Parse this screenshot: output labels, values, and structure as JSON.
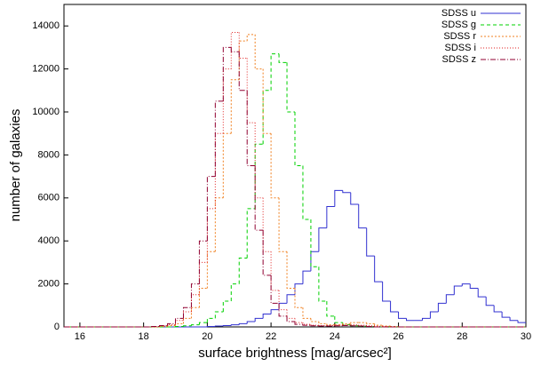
{
  "chart_data": {
    "type": "histogram",
    "xlabel": "surface brightness [mag/arcsec²]",
    "ylabel": "number of galaxies",
    "xlim": [
      15.5,
      30
    ],
    "xticks": [
      16,
      18,
      20,
      22,
      24,
      26,
      28,
      30
    ],
    "ylim": [
      0,
      15000
    ],
    "yticks": [
      0,
      2000,
      4000,
      6000,
      8000,
      10000,
      12000,
      14000
    ],
    "legend": "top-right",
    "bins": [
      15.5,
      15.75,
      16,
      16.25,
      16.5,
      16.75,
      17,
      17.25,
      17.5,
      17.75,
      18,
      18.25,
      18.5,
      18.75,
      19,
      19.25,
      19.5,
      19.75,
      20,
      20.25,
      20.5,
      20.75,
      21,
      21.25,
      21.5,
      21.75,
      22,
      22.25,
      22.5,
      22.75,
      23,
      23.25,
      23.5,
      23.75,
      24,
      24.25,
      24.5,
      24.75,
      25,
      25.25,
      25.5,
      25.75,
      26,
      26.25,
      26.5,
      26.75,
      27,
      27.25,
      27.5,
      27.75,
      28,
      28.25,
      28.5,
      28.75,
      29,
      29.25,
      29.5,
      29.75,
      30
    ],
    "series": [
      {
        "name": "SDSS u",
        "color": "#3030d0",
        "dash": "none",
        "values": [
          0,
          0,
          0,
          0,
          0,
          0,
          0,
          0,
          0,
          0,
          0,
          0,
          0,
          0,
          0,
          0,
          0,
          0,
          20,
          40,
          60,
          100,
          150,
          250,
          400,
          600,
          800,
          1100,
          1500,
          2000,
          2600,
          3500,
          4600,
          5600,
          6350,
          6250,
          5700,
          4600,
          3300,
          2100,
          1200,
          700,
          400,
          300,
          300,
          400,
          700,
          1100,
          1500,
          1900,
          2000,
          1800,
          1400,
          1000,
          700,
          450,
          300,
          200
        ]
      },
      {
        "name": "SDSS g",
        "color": "#00d000",
        "dash": "4,3",
        "values": [
          0,
          0,
          0,
          0,
          0,
          0,
          0,
          0,
          0,
          0,
          0,
          0,
          0,
          0,
          20,
          50,
          100,
          200,
          400,
          700,
          1200,
          2000,
          3200,
          5500,
          8500,
          11000,
          12700,
          12300,
          10000,
          7500,
          5000,
          2800,
          1200,
          500,
          200,
          100,
          50,
          30,
          20,
          0,
          0,
          0,
          0,
          0,
          0,
          0,
          0,
          0,
          0,
          0,
          0,
          0,
          0,
          0,
          0,
          0,
          0,
          0
        ]
      },
      {
        "name": "SDSS r",
        "color": "#f08020",
        "dash": "2,2",
        "values": [
          0,
          0,
          0,
          0,
          0,
          0,
          0,
          0,
          0,
          0,
          0,
          0,
          20,
          60,
          150,
          400,
          900,
          1800,
          3500,
          6000,
          9000,
          11500,
          13300,
          13600,
          12000,
          9000,
          6000,
          3500,
          1800,
          900,
          400,
          250,
          150,
          100,
          100,
          150,
          200,
          200,
          150,
          80,
          40,
          20,
          0,
          0,
          0,
          0,
          0,
          0,
          0,
          0,
          0,
          0,
          0,
          0,
          0,
          0,
          0,
          0
        ]
      },
      {
        "name": "SDSS i",
        "color": "#e02020",
        "dash": "1,2",
        "values": [
          0,
          0,
          0,
          0,
          0,
          0,
          0,
          0,
          0,
          0,
          0,
          0,
          40,
          100,
          300,
          700,
          1500,
          3000,
          5500,
          9000,
          12000,
          13700,
          12500,
          9500,
          6000,
          3500,
          1700,
          800,
          400,
          200,
          120,
          80,
          60,
          60,
          80,
          100,
          100,
          80,
          50,
          30,
          20,
          0,
          0,
          0,
          0,
          0,
          0,
          0,
          0,
          0,
          0,
          0,
          0,
          0,
          0,
          0,
          0,
          0
        ]
      },
      {
        "name": "SDSS z",
        "color": "#900030",
        "dash": "6,2,1,2",
        "values": [
          0,
          0,
          0,
          0,
          0,
          0,
          0,
          0,
          0,
          0,
          0,
          20,
          60,
          150,
          400,
          900,
          2000,
          4000,
          7000,
          10500,
          13000,
          12800,
          11000,
          7500,
          4500,
          2400,
          1100,
          500,
          250,
          120,
          80,
          50,
          40,
          40,
          50,
          60,
          50,
          40,
          20,
          0,
          0,
          0,
          0,
          0,
          0,
          0,
          0,
          0,
          0,
          0,
          0,
          0,
          0,
          0,
          0,
          0,
          0,
          0
        ]
      }
    ]
  }
}
